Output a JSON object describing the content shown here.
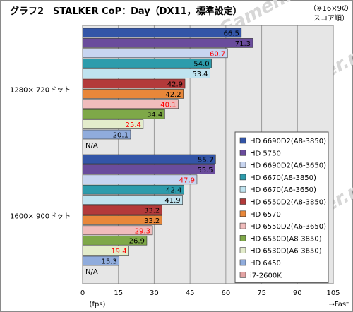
{
  "chart_data": {
    "type": "bar",
    "orientation": "horizontal",
    "title": "グラフ2　STALKER CoP：Day（DX11，標準設定）",
    "note_lines": [
      "（※16×9の",
      "スコア順）"
    ],
    "xlabel": "(fps)",
    "x_direction_label": "→Fast",
    "xlim": [
      0,
      105
    ],
    "xticks": [
      0,
      15,
      30,
      45,
      60,
      75,
      90,
      105
    ],
    "grid": true,
    "legend_position": "right",
    "categories": [
      "1280× 720ドット",
      "1600× 900ドット"
    ],
    "na_label": "N/A",
    "series": [
      {
        "name": "HD 6690D2(A8-3850)",
        "color": "#3355a7",
        "values": [
          66.5,
          55.7
        ],
        "label_color": "#000000"
      },
      {
        "name": "HD 5750",
        "color": "#6a4c9c",
        "values": [
          71.3,
          55.5
        ],
        "label_color": "#000000"
      },
      {
        "name": "HD 6690D2(A6-3650)",
        "color": "#c8d5f0",
        "values": [
          60.7,
          47.9
        ],
        "label_color": "#ff0000"
      },
      {
        "name": "HD 6670(A8-3850)",
        "color": "#2d9cac",
        "values": [
          54.0,
          42.4
        ],
        "label_color": "#000000"
      },
      {
        "name": "HD 6670(A6-3650)",
        "color": "#bfe3ef",
        "values": [
          53.4,
          41.9
        ],
        "label_color": "#000000"
      },
      {
        "name": "HD 6550D2(A8-3850)",
        "color": "#b33a3a",
        "values": [
          42.9,
          33.2
        ],
        "label_color": "#000000"
      },
      {
        "name": "HD 6570",
        "color": "#e8873a",
        "values": [
          42.2,
          33.2
        ],
        "label_color": "#000000"
      },
      {
        "name": "HD 6550D2(A6-3650)",
        "color": "#f0bcbc",
        "values": [
          40.1,
          29.3
        ],
        "label_color": "#ff0000"
      },
      {
        "name": "HD 6550D(A8-3850)",
        "color": "#7ea848",
        "values": [
          34.4,
          26.9
        ],
        "label_color": "#000000"
      },
      {
        "name": "HD 6530D(A6-3650)",
        "color": "#e3eccb",
        "values": [
          25.4,
          19.4
        ],
        "label_color": "#ff0000"
      },
      {
        "name": "HD 6450",
        "color": "#90acdc",
        "values": [
          20.1,
          15.3
        ],
        "label_color": "#000000"
      },
      {
        "name": "i7-2600K",
        "color": "#e3a4a4",
        "values": [
          null,
          null
        ],
        "label_color": "#000000"
      }
    ]
  }
}
